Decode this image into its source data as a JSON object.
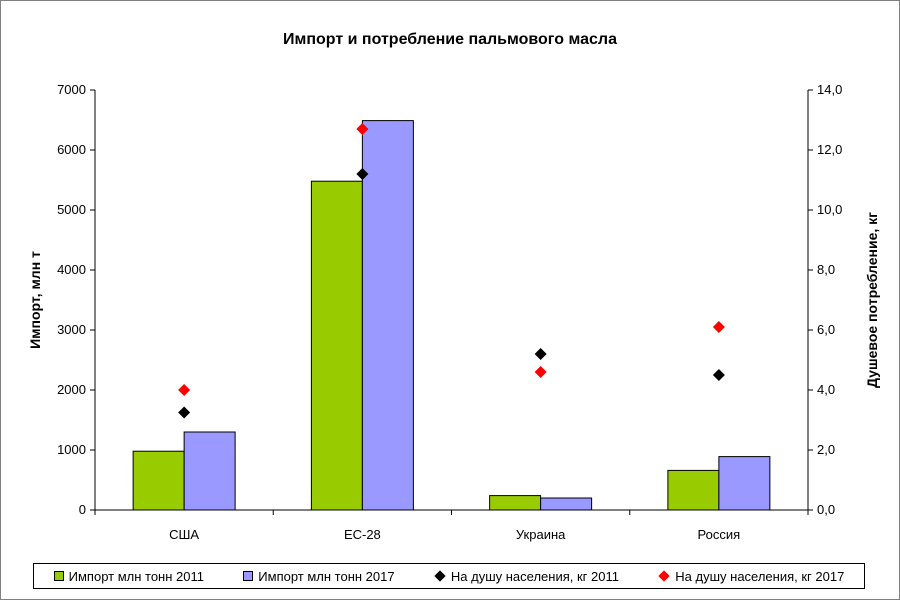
{
  "chart_data": {
    "type": "bar",
    "title": "Импорт и потребление пальмового масла",
    "ylabel": "Импорт, млн т",
    "y2label": "Душевое потребление, кг",
    "categories": [
      "США",
      "ЕС-28",
      "Украина",
      "Россия"
    ],
    "ylim": [
      0,
      7000
    ],
    "yticks": [
      "0",
      "1000",
      "2000",
      "3000",
      "4000",
      "5000",
      "6000",
      "7000"
    ],
    "y2lim": [
      0,
      14
    ],
    "y2ticks": [
      "0,0",
      "2,0",
      "4,0",
      "6,0",
      "8,0",
      "10,0",
      "12,0",
      "14,0"
    ],
    "grid": false,
    "legend_position": "bottom",
    "bar_series": [
      {
        "name": "Импорт млн тонн 2011",
        "values": [
          980,
          5480,
          240,
          660
        ],
        "color": "#99cc00"
      },
      {
        "name": "Импорт млн тонн 2017",
        "values": [
          1300,
          6490,
          200,
          890
        ],
        "color": "#9999ff"
      }
    ],
    "point_series": [
      {
        "name": "На душу населения, кг 2011",
        "values": [
          3.25,
          11.2,
          5.2,
          4.5
        ],
        "color": "#000000"
      },
      {
        "name": "На душу населения, кг 2017",
        "values": [
          4.0,
          12.7,
          4.6,
          6.1
        ],
        "color": "#ff0000"
      }
    ]
  }
}
